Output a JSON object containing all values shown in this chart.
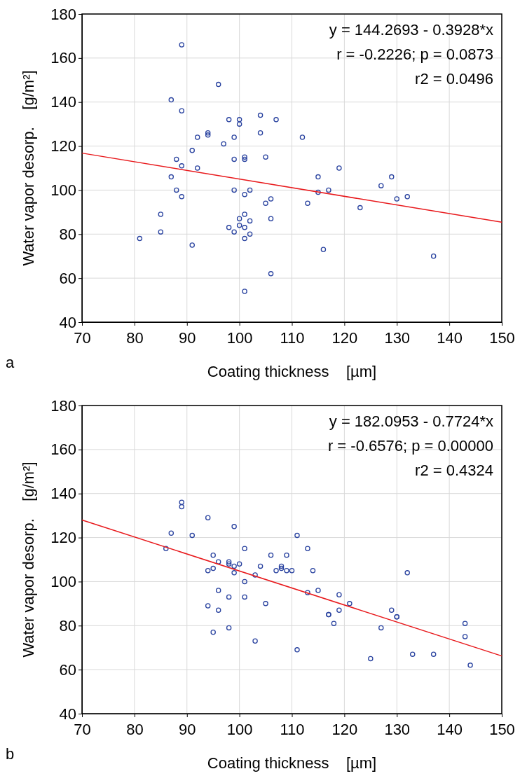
{
  "chart_data": [
    {
      "type": "scatter",
      "xlabel": "Coating thickness    [µm]",
      "ylabel": "Water vapor desorp.    [g/m²]",
      "xlim": [
        70,
        150
      ],
      "xticks": [
        70,
        80,
        90,
        100,
        110,
        120,
        130,
        140,
        150
      ],
      "ylim": [
        40,
        180
      ],
      "yticks": [
        40,
        60,
        80,
        100,
        120,
        140,
        160,
        180
      ],
      "grid": true,
      "annotations": [
        "y = 144.2693 - 0.3928*x",
        "r = -0.2226; p = 0.0873",
        "r2 = 0.0496",
        "a"
      ],
      "series": [
        {
          "marker": "circle",
          "color": "#2b44a0",
          "x": [
            81,
            85,
            85,
            87,
            87,
            88,
            88,
            89,
            89,
            89,
            89,
            91,
            91,
            92,
            92,
            94,
            94,
            96,
            97,
            98,
            98,
            99,
            99,
            99,
            99,
            100,
            100,
            100,
            100,
            101,
            101,
            101,
            101,
            101,
            101,
            101,
            102,
            102,
            102,
            104,
            104,
            105,
            105,
            106,
            106,
            106,
            107,
            112,
            113,
            115,
            115,
            116,
            117,
            119,
            123,
            127,
            129,
            130,
            132,
            137
          ],
          "values": [
            78,
            89,
            81,
            141,
            106,
            114,
            100,
            166,
            136,
            111,
            97,
            118,
            75,
            124,
            110,
            125,
            126,
            148,
            121,
            132,
            83,
            124,
            114,
            100,
            81,
            132,
            130,
            87,
            84,
            115,
            114,
            98,
            89,
            83,
            78,
            54,
            100,
            86,
            80,
            134,
            126,
            115,
            94,
            96,
            87,
            62,
            132,
            124,
            94,
            106,
            99,
            73,
            100,
            110,
            92,
            102,
            106,
            96,
            97,
            70
          ]
        },
        {
          "type": "line",
          "marker": "none",
          "color": "#e8191c",
          "x": [
            70,
            150
          ],
          "values": [
            116.8,
            85.4
          ]
        }
      ]
    },
    {
      "type": "scatter",
      "xlabel": "Coating thickness    [µm]",
      "ylabel": "Water vapor desorp.    [g/m²]",
      "xlim": [
        70,
        150
      ],
      "xticks": [
        70,
        80,
        90,
        100,
        110,
        120,
        130,
        140,
        150
      ],
      "ylim": [
        40,
        180
      ],
      "yticks": [
        40,
        60,
        80,
        100,
        120,
        140,
        160,
        180
      ],
      "grid": true,
      "annotations": [
        "y = 182.0953 - 0.7724*x",
        "r = -0.6576; p = 0.00000",
        "r2 = 0.4324",
        "b"
      ],
      "series": [
        {
          "marker": "circle",
          "color": "#2b44a0",
          "x": [
            86,
            87,
            89,
            89,
            91,
            94,
            94,
            94,
            95,
            95,
            95,
            96,
            96,
            96,
            98,
            98,
            98,
            98,
            99,
            99,
            99,
            100,
            101,
            101,
            101,
            103,
            103,
            104,
            105,
            106,
            107,
            108,
            108,
            109,
            109,
            110,
            111,
            111,
            113,
            113,
            114,
            115,
            117,
            117,
            118,
            119,
            119,
            121,
            125,
            127,
            129,
            130,
            130,
            132,
            133,
            137,
            143,
            143,
            144
          ],
          "values": [
            115,
            122,
            136,
            134,
            121,
            129,
            105,
            89,
            112,
            106,
            77,
            109,
            96,
            87,
            109,
            108,
            93,
            79,
            125,
            107,
            104,
            108,
            115,
            100,
            93,
            103,
            73,
            107,
            90,
            112,
            105,
            107,
            106,
            112,
            105,
            105,
            121,
            69,
            115,
            95,
            105,
            96,
            85,
            85,
            81,
            94,
            87,
            90,
            65,
            79,
            87,
            84,
            84,
            104,
            67,
            67,
            81,
            75,
            62
          ]
        },
        {
          "type": "line",
          "marker": "none",
          "color": "#e8191c",
          "x": [
            70,
            150
          ],
          "values": [
            128.0,
            66.2
          ]
        }
      ]
    }
  ]
}
